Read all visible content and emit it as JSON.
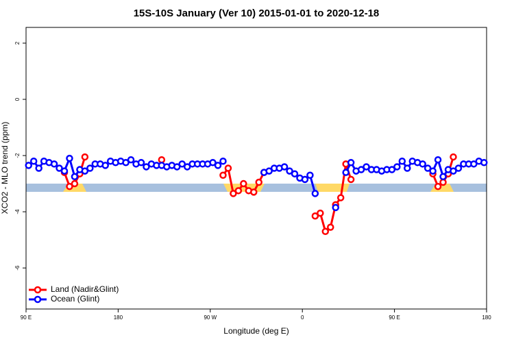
{
  "chart_data": {
    "type": "line",
    "title": "15S-10S January (Ver 10)   2015-01-01 to 2020-12-18",
    "x_label": "Longitude (deg E)",
    "y_label": "XCO2 - MLO trend (ppm)",
    "xlim": [
      90,
      540
    ],
    "ylim": [
      -7.46,
      2.56
    ],
    "xticks": [
      {
        "value": 90,
        "label": "90 E"
      },
      180,
      {
        "value": 270,
        "label": "90 W"
      },
      {
        "value": 360,
        "label": "0"
      },
      {
        "value": 450,
        "label": "90 E"
      },
      {
        "value": 540,
        "label": "180"
      }
    ],
    "yticks": [
      2,
      0,
      -2,
      -4,
      -6
    ],
    "legend": "bottom-left",
    "x": [
      92.5,
      97.5,
      102.5,
      107.5,
      112.5,
      117.5,
      122.5,
      127.5,
      132.5,
      137.5,
      142.5,
      147.5,
      152.5,
      157.5,
      162.5,
      167.5,
      172.5,
      177.5,
      182.5,
      187.5,
      192.5,
      197.5,
      202.5,
      207.5,
      212.5,
      217.5,
      222.5,
      227.5,
      232.5,
      237.5,
      242.5,
      247.5,
      252.5,
      257.5,
      262.5,
      267.5,
      272.5,
      277.5,
      282.5,
      287.5,
      292.5,
      297.5,
      302.5,
      307.5,
      312.5,
      317.5,
      322.5,
      327.5,
      332.5,
      337.5,
      342.5,
      347.5,
      352.5,
      357.5,
      362.5,
      367.5,
      372.5,
      377.5,
      382.5,
      387.5,
      392.5,
      397.5,
      402.5,
      407.5,
      412.5,
      417.5,
      422.5,
      427.5,
      432.5,
      437.5,
      442.5,
      447.5,
      452.5,
      457.5,
      462.5,
      467.5,
      472.5,
      477.5,
      482.5,
      487.5,
      492.5,
      497.5,
      502.5,
      507.5,
      512.5,
      517.5,
      522.5,
      527.5,
      532.5,
      537.5
    ],
    "series": [
      {
        "name": "Land (Nadir&Glint)",
        "color": "#ff0000",
        "values": [
          null,
          null,
          null,
          null,
          null,
          null,
          null,
          -2.6,
          -3.1,
          -3.0,
          -2.65,
          -2.05,
          null,
          null,
          null,
          null,
          null,
          null,
          null,
          null,
          null,
          null,
          null,
          null,
          null,
          null,
          -2.15,
          null,
          null,
          null,
          null,
          null,
          null,
          null,
          null,
          null,
          null,
          null,
          -2.7,
          -2.45,
          -3.35,
          -3.25,
          -3.0,
          -3.25,
          -3.3,
          -2.95,
          -2.6,
          null,
          null,
          null,
          null,
          null,
          null,
          null,
          null,
          null,
          -4.15,
          -4.05,
          -4.7,
          -4.55,
          -3.75,
          -3.5,
          -2.3,
          -2.85,
          null,
          null,
          null,
          null,
          null,
          null,
          null,
          null,
          null,
          null,
          null,
          null,
          null,
          null,
          null,
          -2.65,
          -3.1,
          -2.95,
          -2.65,
          -2.05,
          null,
          null,
          null,
          null,
          null,
          null
        ]
      },
      {
        "name": "Ocean (Glint)",
        "color": "#0000ff",
        "values": [
          -2.35,
          -2.2,
          -2.45,
          -2.2,
          -2.25,
          -2.3,
          -2.45,
          -2.55,
          -2.1,
          -2.75,
          -2.5,
          -2.55,
          -2.45,
          -2.3,
          -2.3,
          -2.35,
          -2.2,
          -2.25,
          -2.2,
          -2.25,
          -2.15,
          -2.3,
          -2.25,
          -2.4,
          -2.3,
          -2.35,
          -2.35,
          -2.4,
          -2.35,
          -2.4,
          -2.3,
          -2.4,
          -2.3,
          -2.3,
          -2.3,
          -2.3,
          -2.25,
          -2.35,
          -2.2,
          null,
          null,
          null,
          null,
          null,
          null,
          null,
          -2.6,
          -2.55,
          -2.45,
          -2.45,
          -2.4,
          -2.55,
          -2.65,
          -2.8,
          -2.85,
          -2.7,
          -3.35,
          null,
          null,
          null,
          -3.85,
          null,
          -2.6,
          -2.25,
          -2.55,
          -2.5,
          -2.4,
          -2.5,
          -2.5,
          -2.55,
          -2.5,
          -2.5,
          -2.4,
          -2.2,
          -2.45,
          -2.2,
          -2.25,
          -2.3,
          -2.45,
          -2.55,
          -2.15,
          -2.75,
          -2.5,
          -2.55,
          -2.45,
          -2.3,
          -2.3,
          -2.3,
          -2.2,
          -2.25
        ]
      }
    ]
  }
}
